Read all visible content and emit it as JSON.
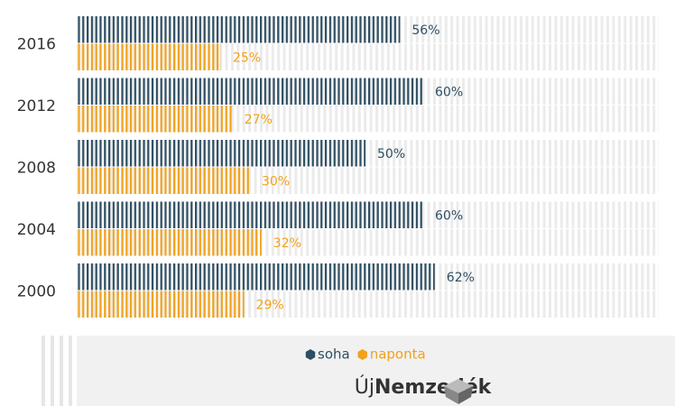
{
  "chart_data": {
    "type": "barh",
    "categories": [
      "2016",
      "2012",
      "2008",
      "2004",
      "2000"
    ],
    "series": [
      {
        "name": "soha",
        "color": "#2e4e62",
        "values": [
          56,
          60,
          50,
          60,
          62
        ],
        "value_labels": [
          "56%",
          "60%",
          "50%",
          "60%",
          "62%"
        ]
      },
      {
        "name": "naponta",
        "color": "#f0a21e",
        "values": [
          25,
          27,
          30,
          32,
          29
        ],
        "value_labels": [
          "25%",
          "27%",
          "30%",
          "32%",
          "29%"
        ]
      }
    ],
    "xlim": [
      0,
      100
    ],
    "legend": "bottom"
  },
  "logo": {
    "prefix": "Új",
    "name": "Nemzedék"
  }
}
